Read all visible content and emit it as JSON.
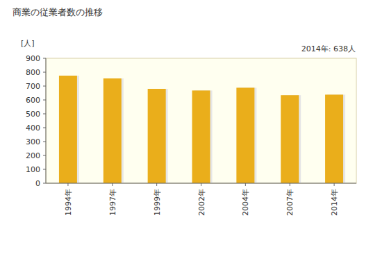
{
  "chart_data": {
    "type": "bar",
    "title": "商業の従業者数の推移",
    "y_label": "[人]",
    "annotation": "2014年: 638人",
    "categories": [
      "1994年",
      "1997年",
      "1999年",
      "2002年",
      "2004年",
      "2007年",
      "2014年"
    ],
    "values": [
      775,
      755,
      680,
      668,
      688,
      634,
      638
    ],
    "color": "#eaae1b",
    "ylim": [
      0,
      900
    ],
    "yticks": [
      0,
      100,
      200,
      300,
      400,
      500,
      600,
      700,
      800,
      900
    ],
    "grid": false
  }
}
